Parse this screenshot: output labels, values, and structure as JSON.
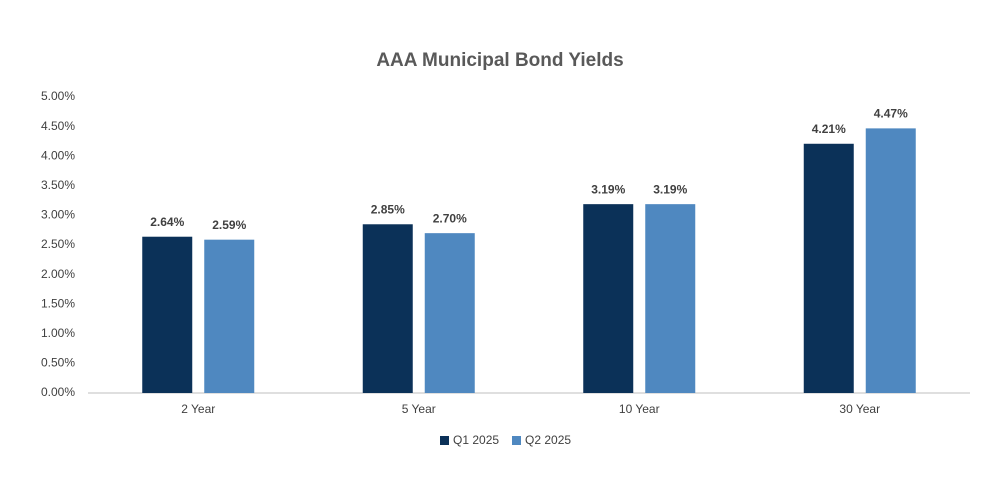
{
  "chart_data": {
    "type": "bar",
    "title": "AAA Municipal Bond Yields",
    "categories": [
      "2 Year",
      "5 Year",
      "10 Year",
      "30 Year"
    ],
    "series": [
      {
        "name": "Q1 2025",
        "color": "#0b3158",
        "values": [
          2.64,
          2.85,
          3.19,
          4.21
        ],
        "value_labels": [
          "2.64%",
          "2.85%",
          "3.19%",
          "4.21%"
        ]
      },
      {
        "name": "Q2 2025",
        "color": "#4f88c0",
        "values": [
          2.59,
          2.7,
          3.19,
          4.47
        ],
        "value_labels": [
          "2.59%",
          "2.70%",
          "3.19%",
          "4.47%"
        ]
      }
    ],
    "ylim": [
      0,
      5
    ],
    "yticks": [
      {
        "value": 0,
        "label": "0.00%"
      },
      {
        "value": 0.5,
        "label": "0.50%"
      },
      {
        "value": 1,
        "label": "1.00%"
      },
      {
        "value": 1.5,
        "label": "1.50%"
      },
      {
        "value": 2,
        "label": "2.00%"
      },
      {
        "value": 2.5,
        "label": "2.50%"
      },
      {
        "value": 3,
        "label": "3.00%"
      },
      {
        "value": 3.5,
        "label": "3.50%"
      },
      {
        "value": 4,
        "label": "4.00%"
      },
      {
        "value": 4.5,
        "label": "4.50%"
      },
      {
        "value": 5,
        "label": "5.00%"
      }
    ],
    "grid": false,
    "legend": "bottom"
  }
}
